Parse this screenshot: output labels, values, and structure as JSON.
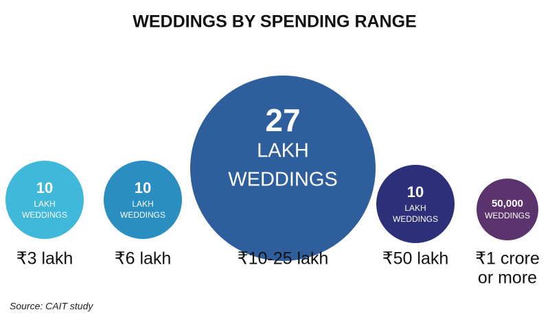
{
  "header": {
    "title": "WEDDINGS BY SPENDING RANGE"
  },
  "items": [
    {
      "value": "10",
      "unit": [
        "LAKH",
        "WEDDINGS"
      ],
      "range": [
        "₹3 lakh"
      ],
      "color": "#3fb8d9"
    },
    {
      "value": "10",
      "unit": [
        "LAKH",
        "WEDDINGS"
      ],
      "range": [
        "₹6 lakh"
      ],
      "color": "#2b8ec0"
    },
    {
      "value": "27",
      "unit": [
        "LAKH",
        "WEDDINGS"
      ],
      "range": [
        "₹10-25 lakh"
      ],
      "color": "#2e5f9c"
    },
    {
      "value": "10",
      "unit": [
        "LAKH",
        "WEDDINGS"
      ],
      "range": [
        "₹50 lakh"
      ],
      "color": "#2d2f78"
    },
    {
      "value": "50,000",
      "unit": [
        "WEDDINGS"
      ],
      "range": [
        "₹1 crore",
        "or more"
      ],
      "color": "#5b346e"
    }
  ],
  "footer": {
    "source": "Source: CAIT study"
  }
}
